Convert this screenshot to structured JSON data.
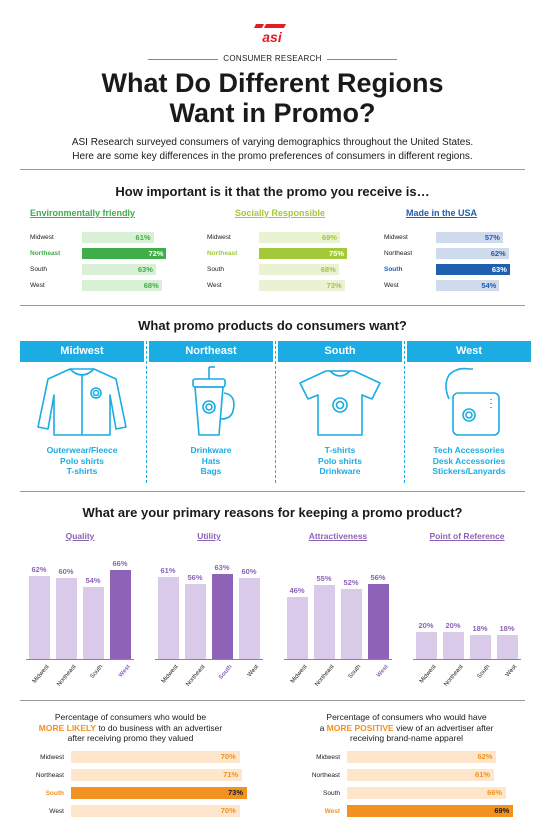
{
  "header": {
    "logo_text": "asi",
    "kicker": "CONSUMER RESEARCH",
    "title_line1": "What Do Different Regions",
    "title_line2": "Want in Promo?",
    "intro_line1": "ASI Research surveyed consumers of varying demographics throughout the United States.",
    "intro_line2": "Here are some key differences in the promo preferences of consumers in different regions."
  },
  "importance": {
    "title": "How important is it that the promo you receive is…",
    "panels": [
      {
        "heading": "Environmentally friendly",
        "color": "#3fae49",
        "light": "#d9efd6",
        "highlight": 1,
        "rows": [
          {
            "label": "Midwest",
            "value": 61,
            "text": "61%"
          },
          {
            "label": "Northeast",
            "value": 72,
            "text": "72%"
          },
          {
            "label": "South",
            "value": 63,
            "text": "63%"
          },
          {
            "label": "West",
            "value": 68,
            "text": "68%"
          }
        ]
      },
      {
        "heading": "Socially Responsible",
        "color": "#a3c93a",
        "light": "#e9f2d2",
        "highlight": 1,
        "rows": [
          {
            "label": "Midwest",
            "value": 69,
            "text": "69%"
          },
          {
            "label": "Northeast",
            "value": 75,
            "text": "75%"
          },
          {
            "label": "South",
            "value": 68,
            "text": "68%"
          },
          {
            "label": "West",
            "value": 73,
            "text": "73%"
          }
        ]
      },
      {
        "heading": "Made in the USA",
        "color": "#1e5fb0",
        "light": "#d0daed",
        "highlight": 2,
        "rows": [
          {
            "label": "Midwest",
            "value": 57,
            "text": "57%"
          },
          {
            "label": "Northeast",
            "value": 62,
            "text": "62%"
          },
          {
            "label": "South",
            "value": 63,
            "text": "63%"
          },
          {
            "label": "West",
            "value": 54,
            "text": "54%"
          }
        ]
      }
    ]
  },
  "products": {
    "title": "What promo products do consumers want?",
    "columns": [
      {
        "region": "Midwest",
        "icon": "jacket-icon",
        "items": [
          "Outerwear/Fleece",
          "Polo shirts",
          "T-shirts"
        ]
      },
      {
        "region": "Northeast",
        "icon": "tumbler-icon",
        "items": [
          "Drinkware",
          "Hats",
          "Bags"
        ]
      },
      {
        "region": "South",
        "icon": "tshirt-icon",
        "items": [
          "T-shirts",
          "Polo shirts",
          "Drinkware"
        ]
      },
      {
        "region": "West",
        "icon": "power-bank-icon",
        "items": [
          "Tech Accessories",
          "Desk Accessories",
          "Stickers/Lanyards"
        ]
      }
    ]
  },
  "chart_data": [
    {
      "type": "bar",
      "title": "What are your primary reasons for keeping a promo product?",
      "categories": [
        "Midwest",
        "Northeast",
        "South",
        "West"
      ],
      "ylim": [
        0,
        100
      ],
      "color": "#8e63b7",
      "light": "#d8cae8",
      "series": [
        {
          "name": "Quality",
          "values": [
            62,
            60,
            54,
            66
          ],
          "labels": [
            "62%",
            "60%",
            "54%",
            "66%"
          ],
          "highlight": 3
        },
        {
          "name": "Utility",
          "values": [
            61,
            56,
            63,
            60
          ],
          "labels": [
            "61%",
            "56%",
            "63%",
            "60%"
          ],
          "highlight": 2
        },
        {
          "name": "Attractiveness",
          "values": [
            46,
            55,
            52,
            56
          ],
          "labels": [
            "46%",
            "55%",
            "52%",
            "56%"
          ],
          "highlight": 3
        },
        {
          "name": "Point of Reference",
          "values": [
            20,
            20,
            18,
            18
          ],
          "labels": [
            "20%",
            "20%",
            "18%",
            "18%"
          ],
          "highlight": -1
        }
      ]
    },
    {
      "type": "bar",
      "orientation": "horizontal",
      "title_pre": "Percentage of consumers who would be",
      "title_em": "MORE LIKELY",
      "title_mid": " to do business with an advertiser",
      "title_post": "after receiving promo they valued",
      "color": "#f29120",
      "light": "#fde6cc",
      "highlight": 2,
      "categories": [
        "Midwest",
        "Northeast",
        "South",
        "West"
      ],
      "values": [
        70,
        71,
        73,
        70
      ],
      "labels": [
        "70%",
        "71%",
        "73%",
        "70%"
      ]
    },
    {
      "type": "bar",
      "orientation": "horizontal",
      "title_pre": "Percentage of consumers who would have",
      "title_em_prefix": "a ",
      "title_em": "MORE POSITIVE",
      "title_mid": " view of an advertiser after",
      "title_post": "receiving brand-name apparel",
      "color": "#f29120",
      "light": "#fde6cc",
      "highlight": 3,
      "categories": [
        "Midwest",
        "Northeast",
        "South",
        "West"
      ],
      "values": [
        62,
        61,
        66,
        69
      ],
      "labels": [
        "62%",
        "61%",
        "66%",
        "69%"
      ]
    }
  ]
}
